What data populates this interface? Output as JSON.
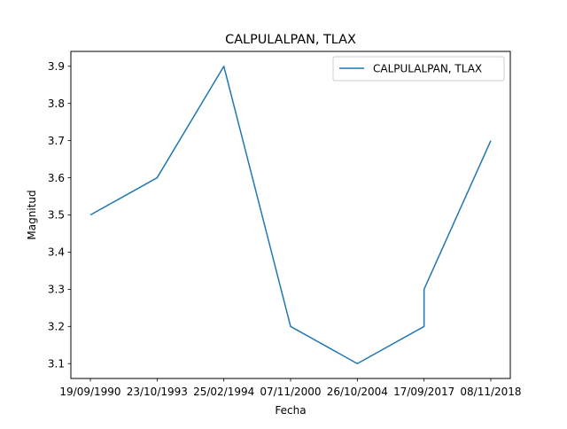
{
  "chart_data": {
    "type": "line",
    "title": "CALPULALPAN, TLAX",
    "xlabel": "Fecha",
    "ylabel": "Magnitud",
    "x": [
      "19/09/1990",
      "23/10/1993",
      "25/02/1994",
      "07/11/2000",
      "26/10/2004",
      "17/09/2017",
      "17/09/2017",
      "08/11/2018"
    ],
    "xticks": [
      "19/09/1990",
      "23/10/1993",
      "25/02/1994",
      "07/11/2000",
      "26/10/2004",
      "17/09/2017",
      "08/11/2018"
    ],
    "series": [
      {
        "name": "CALPULALPAN, TLAX",
        "color": "#1f77b4",
        "values": [
          3.5,
          3.6,
          3.9,
          3.2,
          3.1,
          3.2,
          3.3,
          3.7
        ]
      }
    ],
    "ylim": [
      3.06,
      3.94
    ],
    "yticks": [
      "3.1",
      "3.2",
      "3.3",
      "3.4",
      "3.5",
      "3.6",
      "3.7",
      "3.8",
      "3.9"
    ],
    "grid": false,
    "legend": "upper right"
  }
}
